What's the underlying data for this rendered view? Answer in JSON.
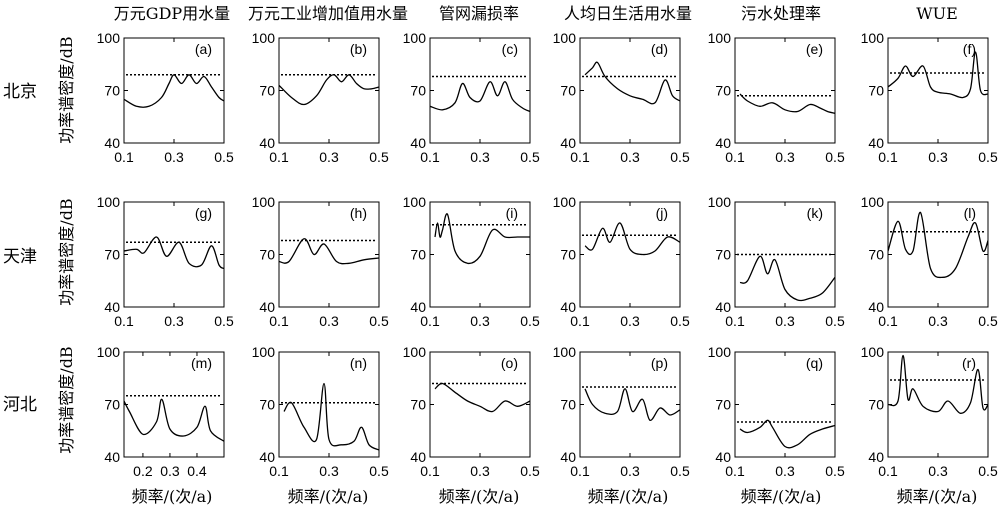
{
  "column_titles": [
    "万元GDP用水量",
    "万元工业增加值用水量",
    "管网漏损率",
    "人均日生活用水量",
    "污水处理率",
    "WUE"
  ],
  "row_labels": [
    "北京",
    "天津",
    "河北"
  ],
  "ylabel": "功率谱密度/dB",
  "xlabel": "频率/(次/a)",
  "chart_data": [
    {
      "type": "line",
      "label": "(a)",
      "xlim": [
        0.1,
        0.5
      ],
      "ylim": [
        40,
        100
      ],
      "x_ticks": [
        0.1,
        0.3,
        0.5
      ],
      "y_ticks": [
        40,
        70,
        100
      ],
      "threshold": 79,
      "x": [
        0.1,
        0.15,
        0.2,
        0.25,
        0.28,
        0.3,
        0.33,
        0.36,
        0.39,
        0.42,
        0.45,
        0.48,
        0.5
      ],
      "y": [
        65,
        61,
        61,
        66,
        74,
        79,
        74,
        79,
        74,
        78,
        72,
        66,
        64
      ]
    },
    {
      "type": "line",
      "label": "(b)",
      "xlim": [
        0.1,
        0.5
      ],
      "ylim": [
        40,
        100
      ],
      "x_ticks": [
        0.1,
        0.3,
        0.5
      ],
      "y_ticks": [
        40,
        70,
        100
      ],
      "threshold": 79,
      "x": [
        0.1,
        0.15,
        0.2,
        0.25,
        0.29,
        0.32,
        0.35,
        0.38,
        0.41,
        0.44,
        0.47,
        0.5
      ],
      "y": [
        73,
        66,
        62,
        67,
        76,
        79,
        75,
        79,
        74,
        71,
        71,
        72
      ]
    },
    {
      "type": "line",
      "label": "(c)",
      "xlim": [
        0.1,
        0.5
      ],
      "ylim": [
        40,
        100
      ],
      "x_ticks": [
        0.1,
        0.3,
        0.5
      ],
      "y_ticks": [
        40,
        70,
        100
      ],
      "threshold": 78,
      "x": [
        0.1,
        0.15,
        0.2,
        0.23,
        0.26,
        0.3,
        0.34,
        0.37,
        0.4,
        0.43,
        0.47,
        0.5
      ],
      "y": [
        61,
        59,
        63,
        74,
        66,
        64,
        75,
        67,
        75,
        65,
        60,
        58
      ]
    },
    {
      "type": "line",
      "label": "(d)",
      "xlim": [
        0.1,
        0.5
      ],
      "ylim": [
        40,
        100
      ],
      "x_ticks": [
        0.1,
        0.3,
        0.5
      ],
      "y_ticks": [
        40,
        70,
        100
      ],
      "threshold": 78,
      "x": [
        0.12,
        0.15,
        0.17,
        0.2,
        0.25,
        0.3,
        0.35,
        0.4,
        0.44,
        0.47,
        0.5
      ],
      "y": [
        79,
        83,
        86,
        78,
        71,
        67,
        65,
        63,
        76,
        67,
        64
      ]
    },
    {
      "type": "line",
      "label": "(e)",
      "xlim": [
        0.1,
        0.5
      ],
      "ylim": [
        40,
        100
      ],
      "x_ticks": [
        0.1,
        0.3,
        0.5
      ],
      "y_ticks": [
        40,
        70,
        100
      ],
      "threshold": 67,
      "x": [
        0.12,
        0.15,
        0.2,
        0.25,
        0.3,
        0.35,
        0.4,
        0.44,
        0.47,
        0.5
      ],
      "y": [
        68,
        64,
        61,
        63,
        59,
        58,
        62,
        60,
        58,
        57
      ]
    },
    {
      "type": "line",
      "label": "(f)",
      "xlim": [
        0.1,
        0.5
      ],
      "ylim": [
        40,
        100
      ],
      "x_ticks": [
        0.1,
        0.3,
        0.5
      ],
      "y_ticks": [
        40,
        70,
        100
      ],
      "threshold": 80,
      "x": [
        0.1,
        0.14,
        0.17,
        0.2,
        0.24,
        0.27,
        0.3,
        0.35,
        0.4,
        0.43,
        0.45,
        0.47,
        0.5
      ],
      "y": [
        72,
        77,
        84,
        78,
        84,
        72,
        69,
        68,
        66,
        71,
        92,
        70,
        68
      ]
    },
    {
      "type": "line",
      "label": "(g)",
      "xlim": [
        0.1,
        0.5
      ],
      "ylim": [
        40,
        100
      ],
      "x_ticks": [
        0.1,
        0.3,
        0.5
      ],
      "y_ticks": [
        40,
        70,
        100
      ],
      "threshold": 77,
      "x": [
        0.1,
        0.15,
        0.18,
        0.23,
        0.27,
        0.32,
        0.36,
        0.41,
        0.45,
        0.48,
        0.5
      ],
      "y": [
        72,
        73,
        71,
        80,
        69,
        77,
        65,
        64,
        75,
        64,
        62
      ]
    },
    {
      "type": "line",
      "label": "(h)",
      "xlim": [
        0.1,
        0.5
      ],
      "ylim": [
        40,
        100
      ],
      "x_ticks": [
        0.1,
        0.3,
        0.5
      ],
      "y_ticks": [
        40,
        70,
        100
      ],
      "threshold": 78,
      "x": [
        0.1,
        0.14,
        0.2,
        0.24,
        0.28,
        0.33,
        0.38,
        0.44,
        0.5
      ],
      "y": [
        66,
        66,
        79,
        70,
        76,
        66,
        65,
        67,
        68
      ]
    },
    {
      "type": "line",
      "label": "(i)",
      "xlim": [
        0.1,
        0.5
      ],
      "ylim": [
        40,
        100
      ],
      "x_ticks": [
        0.1,
        0.3,
        0.5
      ],
      "y_ticks": [
        40,
        70,
        100
      ],
      "threshold": 87,
      "x": [
        0.12,
        0.13,
        0.14,
        0.15,
        0.17,
        0.2,
        0.25,
        0.3,
        0.35,
        0.4,
        0.45,
        0.5
      ],
      "y": [
        80,
        88,
        80,
        84,
        93,
        72,
        65,
        69,
        84,
        80,
        80,
        80
      ]
    },
    {
      "type": "line",
      "label": "(j)",
      "xlim": [
        0.1,
        0.5
      ],
      "ylim": [
        40,
        100
      ],
      "x_ticks": [
        0.1,
        0.3,
        0.5
      ],
      "y_ticks": [
        40,
        70,
        100
      ],
      "threshold": 81,
      "x": [
        0.12,
        0.15,
        0.19,
        0.22,
        0.26,
        0.3,
        0.35,
        0.4,
        0.45,
        0.5
      ],
      "y": [
        75,
        73,
        85,
        77,
        88,
        73,
        70,
        72,
        80,
        77
      ]
    },
    {
      "type": "line",
      "label": "(k)",
      "xlim": [
        0.1,
        0.5
      ],
      "ylim": [
        40,
        100
      ],
      "x_ticks": [
        0.1,
        0.3,
        0.5
      ],
      "y_ticks": [
        40,
        70,
        100
      ],
      "threshold": 70,
      "x": [
        0.12,
        0.15,
        0.2,
        0.23,
        0.26,
        0.3,
        0.35,
        0.4,
        0.45,
        0.5
      ],
      "y": [
        54,
        55,
        69,
        59,
        67,
        50,
        44,
        45,
        48,
        57
      ]
    },
    {
      "type": "line",
      "label": "(l)",
      "xlim": [
        0.1,
        0.5
      ],
      "ylim": [
        40,
        100
      ],
      "x_ticks": [
        0.1,
        0.3,
        0.5
      ],
      "y_ticks": [
        40,
        70,
        100
      ],
      "threshold": 83,
      "x": [
        0.1,
        0.14,
        0.17,
        0.2,
        0.23,
        0.27,
        0.32,
        0.37,
        0.42,
        0.45,
        0.48,
        0.5
      ],
      "y": [
        72,
        89,
        73,
        72,
        94,
        62,
        57,
        62,
        80,
        88,
        72,
        78
      ]
    },
    {
      "type": "line",
      "label": "(m)",
      "xlim": [
        0.13,
        0.5
      ],
      "ylim": [
        40,
        100
      ],
      "x_ticks": [
        0.2,
        0.3,
        0.4
      ],
      "y_ticks": [
        40,
        70,
        100
      ],
      "threshold": 75,
      "x": [
        0.13,
        0.15,
        0.2,
        0.25,
        0.27,
        0.3,
        0.35,
        0.4,
        0.43,
        0.45,
        0.5
      ],
      "y": [
        72,
        66,
        53,
        60,
        73,
        56,
        52,
        57,
        69,
        55,
        49
      ]
    },
    {
      "type": "line",
      "label": "(n)",
      "xlim": [
        0.1,
        0.5
      ],
      "ylim": [
        40,
        100
      ],
      "x_ticks": [
        0.1,
        0.3,
        0.5
      ],
      "y_ticks": [
        40,
        70,
        100
      ],
      "threshold": 71,
      "x": [
        0.12,
        0.15,
        0.2,
        0.25,
        0.28,
        0.3,
        0.35,
        0.4,
        0.43,
        0.46,
        0.5
      ],
      "y": [
        66,
        71,
        57,
        50,
        82,
        50,
        47,
        49,
        57,
        47,
        44
      ]
    },
    {
      "type": "line",
      "label": "(o)",
      "xlim": [
        0.1,
        0.5
      ],
      "ylim": [
        40,
        100
      ],
      "x_ticks": [
        0.1,
        0.3,
        0.5
      ],
      "y_ticks": [
        40,
        70,
        100
      ],
      "threshold": 82,
      "x": [
        0.12,
        0.15,
        0.2,
        0.25,
        0.3,
        0.35,
        0.4,
        0.45,
        0.5
      ],
      "y": [
        79,
        82,
        77,
        72,
        69,
        66,
        72,
        69,
        72
      ]
    },
    {
      "type": "line",
      "label": "(p)",
      "xlim": [
        0.1,
        0.5
      ],
      "ylim": [
        40,
        100
      ],
      "x_ticks": [
        0.1,
        0.3,
        0.5
      ],
      "y_ticks": [
        40,
        70,
        100
      ],
      "threshold": 80,
      "x": [
        0.12,
        0.15,
        0.2,
        0.25,
        0.28,
        0.31,
        0.35,
        0.38,
        0.42,
        0.46,
        0.5
      ],
      "y": [
        79,
        70,
        65,
        66,
        79,
        66,
        73,
        61,
        68,
        64,
        67
      ]
    },
    {
      "type": "line",
      "label": "(q)",
      "xlim": [
        0.1,
        0.5
      ],
      "ylim": [
        40,
        100
      ],
      "x_ticks": [
        0.1,
        0.3,
        0.5
      ],
      "y_ticks": [
        40,
        70,
        100
      ],
      "threshold": 60,
      "x": [
        0.12,
        0.15,
        0.2,
        0.23,
        0.25,
        0.3,
        0.35,
        0.4,
        0.45,
        0.5
      ],
      "y": [
        56,
        54,
        57,
        61,
        57,
        46,
        47,
        53,
        56,
        58
      ]
    },
    {
      "type": "line",
      "label": "(r)",
      "xlim": [
        0.1,
        0.5
      ],
      "ylim": [
        40,
        100
      ],
      "x_ticks": [
        0.1,
        0.3,
        0.5
      ],
      "y_ticks": [
        40,
        70,
        100
      ],
      "threshold": 84,
      "x": [
        0.1,
        0.14,
        0.16,
        0.18,
        0.2,
        0.24,
        0.3,
        0.34,
        0.39,
        0.43,
        0.46,
        0.48,
        0.5
      ],
      "y": [
        70,
        72,
        98,
        73,
        79,
        69,
        66,
        72,
        65,
        71,
        90,
        68,
        70
      ]
    }
  ]
}
